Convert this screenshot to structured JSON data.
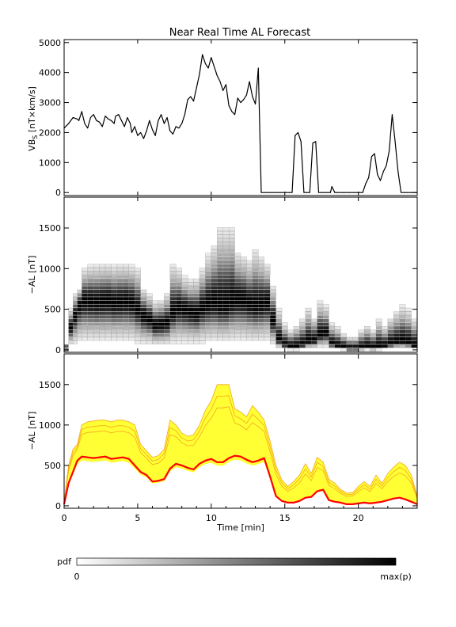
{
  "chart_data": [
    {
      "type": "line",
      "title": "Near Real Time AL Forecast",
      "ylabel_base": "VB",
      "ylabel_sub": "S",
      "ylabel_rest": " [nT×km/s]",
      "xlim": [
        0,
        24
      ],
      "ylim": [
        -100,
        5100
      ],
      "yticks": [
        0,
        1000,
        2000,
        3000,
        4000,
        5000
      ],
      "ytick_labels": [
        "0",
        "1000",
        "2000",
        "3000",
        "4000",
        "5000"
      ],
      "series": [
        {
          "color": "#000000",
          "x": [
            0,
            0.3,
            0.6,
            0.9,
            1.0,
            1.2,
            1.4,
            1.6,
            1.8,
            2.0,
            2.2,
            2.4,
            2.6,
            2.8,
            3.0,
            3.2,
            3.4,
            3.5,
            3.7,
            3.9,
            4.1,
            4.3,
            4.5,
            4.6,
            4.8,
            5.0,
            5.2,
            5.4,
            5.6,
            5.8,
            6.0,
            6.2,
            6.4,
            6.6,
            6.8,
            7.0,
            7.2,
            7.4,
            7.6,
            7.8,
            8.0,
            8.2,
            8.4,
            8.6,
            8.8,
            9.0,
            9.2,
            9.4,
            9.6,
            9.8,
            10.0,
            10.2,
            10.4,
            10.6,
            10.8,
            11.0,
            11.2,
            11.4,
            11.6,
            11.8,
            12.0,
            12.2,
            12.4,
            12.6,
            12.8,
            13.0,
            13.2,
            13.4,
            13.6,
            13.8,
            14.0,
            14.3,
            14.5,
            14.7,
            15.0,
            15.3,
            15.5,
            15.7,
            15.9,
            16.1,
            16.3,
            16.5,
            16.7,
            16.9,
            17.1,
            17.3,
            17.5,
            17.7,
            17.9,
            18.1,
            18.2,
            18.4,
            18.6,
            18.9,
            19.0,
            19.1,
            19.4,
            19.7,
            19.9,
            20.1,
            20.3,
            20.5,
            20.7,
            20.9,
            21.1,
            21.3,
            21.5,
            21.7,
            21.9,
            22.1,
            22.3,
            22.5,
            22.7,
            22.9,
            23.1,
            23.3,
            23.6,
            23.95
          ],
          "y": [
            2150,
            2300,
            2500,
            2450,
            2400,
            2700,
            2300,
            2150,
            2500,
            2600,
            2400,
            2350,
            2200,
            2550,
            2450,
            2400,
            2300,
            2550,
            2600,
            2400,
            2200,
            2500,
            2300,
            2000,
            2200,
            1900,
            2000,
            1800,
            2050,
            2400,
            2100,
            1900,
            2400,
            2600,
            2300,
            2500,
            2050,
            1950,
            2200,
            2150,
            2300,
            2600,
            3100,
            3200,
            3050,
            3500,
            3950,
            4600,
            4300,
            4150,
            4500,
            4200,
            3900,
            3700,
            3400,
            3600,
            2900,
            2700,
            2600,
            3150,
            3000,
            3100,
            3250,
            3700,
            3200,
            2950,
            4150,
            0,
            0,
            0,
            0,
            0,
            0,
            0,
            0,
            0,
            0,
            1900,
            2000,
            1700,
            0,
            0,
            0,
            1650,
            1700,
            0,
            0,
            0,
            0,
            0,
            200,
            0,
            0,
            0,
            0,
            0,
            0,
            0,
            0,
            0,
            0,
            300,
            500,
            1200,
            1300,
            600,
            400,
            700,
            900,
            1400,
            2600,
            1700,
            700,
            0,
            0,
            0,
            0,
            0
          ]
        }
      ]
    },
    {
      "type": "heatmap",
      "ylabel": "−AL [nT]",
      "xlim": [
        0,
        24
      ],
      "ylim": [
        -30,
        1880
      ],
      "yticks": [
        0,
        500,
        1000,
        1500
      ],
      "ytick_labels": [
        "0",
        "500",
        "1000",
        "1500"
      ],
      "colormap": "white-to-black",
      "x": [
        0,
        0.3,
        0.6,
        0.9,
        1.2,
        1.6,
        2.0,
        2.4,
        2.8,
        3.2,
        3.6,
        4.0,
        4.4,
        4.8,
        5.2,
        5.6,
        6.0,
        6.4,
        6.8,
        7.2,
        7.6,
        8.0,
        8.4,
        8.8,
        9.2,
        9.6,
        10.0,
        10.4,
        10.8,
        11.2,
        11.6,
        12.0,
        12.4,
        12.8,
        13.2,
        13.6,
        14.0,
        14.4,
        14.8,
        15.2,
        15.6,
        16.0,
        16.4,
        16.8,
        17.2,
        17.6,
        18.0,
        18.4,
        18.8,
        19.2,
        19.6,
        20.0,
        20.4,
        20.8,
        21.2,
        21.6,
        22.0,
        22.4,
        22.8,
        23.2,
        23.6,
        24.0
      ],
      "center": [
        20,
        280,
        420,
        560,
        610,
        600,
        590,
        600,
        610,
        580,
        590,
        600,
        580,
        500,
        420,
        380,
        300,
        310,
        330,
        460,
        520,
        500,
        470,
        450,
        520,
        560,
        580,
        540,
        540,
        590,
        620,
        610,
        570,
        540,
        560,
        590,
        360,
        120,
        60,
        40,
        40,
        60,
        100,
        110,
        180,
        200,
        70,
        50,
        40,
        20,
        20,
        30,
        40,
        30,
        40,
        50,
        70,
        90,
        100,
        80,
        50,
        20
      ],
      "upper": [
        60,
        500,
        700,
        760,
        1000,
        1040,
        1050,
        1060,
        1060,
        1040,
        1060,
        1060,
        1040,
        1000,
        760,
        680,
        600,
        620,
        700,
        1060,
        1000,
        900,
        860,
        880,
        1000,
        1180,
        1300,
        1500,
        1500,
        1500,
        1200,
        1160,
        1100,
        1240,
        1160,
        1060,
        800,
        500,
        320,
        240,
        300,
        380,
        520,
        400,
        600,
        540,
        330,
        280,
        200,
        160,
        160,
        240,
        300,
        240,
        380,
        280,
        400,
        480,
        540,
        500,
        380,
        120
      ]
    },
    {
      "type": "area",
      "ylabel": "−AL [nT]",
      "xlabel": "Time [min]",
      "xlim": [
        0,
        24
      ],
      "ylim": [
        -30,
        1880
      ],
      "yticks": [
        0,
        500,
        1000,
        1500
      ],
      "ytick_labels": [
        "0",
        "500",
        "1000",
        "1500"
      ],
      "xticks": [
        0,
        5,
        10,
        15,
        20
      ],
      "xtick_labels": [
        "0",
        "5",
        "10",
        "15",
        "20"
      ],
      "band_color": "#ffff33",
      "envelope_color": "#f5a623",
      "median_color": "#ff0000",
      "x": [
        0,
        0.3,
        0.6,
        0.9,
        1.2,
        1.6,
        2.0,
        2.4,
        2.8,
        3.2,
        3.6,
        4.0,
        4.4,
        4.8,
        5.2,
        5.6,
        6.0,
        6.4,
        6.8,
        7.2,
        7.6,
        8.0,
        8.4,
        8.8,
        9.2,
        9.6,
        10.0,
        10.4,
        10.8,
        11.2,
        11.6,
        12.0,
        12.4,
        12.8,
        13.2,
        13.6,
        14.0,
        14.4,
        14.8,
        15.2,
        15.6,
        16.0,
        16.4,
        16.8,
        17.2,
        17.6,
        18.0,
        18.4,
        18.8,
        19.2,
        19.6,
        20.0,
        20.4,
        20.8,
        21.2,
        21.6,
        22.0,
        22.4,
        22.8,
        23.2,
        23.6,
        24.0
      ],
      "median": [
        20,
        280,
        420,
        560,
        610,
        600,
        590,
        600,
        610,
        580,
        590,
        600,
        580,
        500,
        420,
        380,
        300,
        310,
        330,
        460,
        520,
        500,
        470,
        450,
        520,
        560,
        580,
        540,
        540,
        590,
        620,
        610,
        570,
        540,
        560,
        590,
        360,
        120,
        60,
        40,
        40,
        60,
        100,
        110,
        180,
        200,
        70,
        50,
        40,
        20,
        20,
        30,
        40,
        30,
        40,
        50,
        70,
        90,
        100,
        80,
        50,
        20
      ],
      "upper": [
        60,
        500,
        700,
        760,
        1000,
        1040,
        1050,
        1060,
        1060,
        1040,
        1060,
        1060,
        1040,
        1000,
        760,
        680,
        600,
        620,
        700,
        1060,
        1000,
        900,
        860,
        880,
        1000,
        1180,
        1300,
        1500,
        1500,
        1500,
        1200,
        1160,
        1100,
        1240,
        1160,
        1060,
        800,
        500,
        320,
        240,
        300,
        380,
        520,
        400,
        600,
        540,
        330,
        280,
        200,
        160,
        160,
        240,
        300,
        240,
        380,
        280,
        400,
        480,
        540,
        500,
        380,
        120
      ]
    }
  ],
  "colorbar": {
    "label": "pdf",
    "min_label": "0",
    "max_label": "max(p)"
  }
}
